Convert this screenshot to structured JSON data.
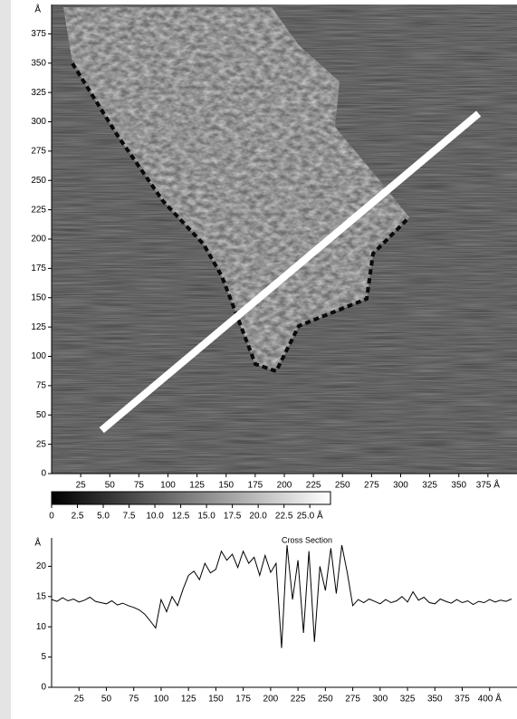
{
  "chart_data": [
    {
      "type": "image",
      "xlim": [
        0,
        400
      ],
      "ylim": [
        0,
        400
      ],
      "xticks": [
        25,
        50,
        75,
        100,
        125,
        150,
        175,
        200,
        225,
        250,
        275,
        300,
        325,
        350,
        {
          "value": 375,
          "label": "375 Å"
        }
      ],
      "yticks": [
        0,
        25,
        50,
        75,
        100,
        125,
        150,
        175,
        200,
        225,
        250,
        275,
        300,
        325,
        350,
        375
      ],
      "y_label": "Å",
      "profile_line": {
        "x": [
          43,
          367
        ],
        "y": [
          37,
          307
        ],
        "color": "#ffffff"
      }
    },
    {
      "type": "colorbar",
      "xlim": [
        0,
        27
      ],
      "xticks": [
        0,
        2.5,
        {
          "value": 5,
          "label": "5.0"
        },
        7.5,
        {
          "value": 10,
          "label": "10.0"
        },
        12.5,
        {
          "value": 15,
          "label": "15.0"
        },
        17.5,
        {
          "value": 20,
          "label": "20.0"
        },
        22.5,
        {
          "value": 25,
          "label": "25.0 Å"
        }
      ]
    },
    {
      "type": "line",
      "title": "Cross Section",
      "xlim": [
        0,
        425
      ],
      "ylim": [
        0,
        24.7
      ],
      "xticks": [
        25,
        50,
        75,
        100,
        125,
        150,
        175,
        200,
        225,
        250,
        275,
        300,
        325,
        350,
        375,
        {
          "value": 400,
          "label": "400 Å"
        }
      ],
      "yticks": [
        0,
        5,
        10,
        15,
        20
      ],
      "y_label": "Å",
      "color": "#000000",
      "x": [
        0,
        5,
        10,
        15,
        20,
        25,
        30,
        35,
        40,
        45,
        50,
        55,
        60,
        65,
        70,
        75,
        80,
        85,
        90,
        95,
        100,
        105,
        110,
        115,
        120,
        125,
        130,
        135,
        140,
        145,
        150,
        155,
        160,
        165,
        170,
        175,
        180,
        185,
        190,
        195,
        200,
        205,
        210,
        215,
        220,
        225,
        230,
        235,
        240,
        245,
        250,
        255,
        260,
        265,
        270,
        275,
        280,
        285,
        290,
        295,
        300,
        305,
        310,
        315,
        320,
        325,
        330,
        335,
        340,
        345,
        350,
        355,
        360,
        365,
        370,
        375,
        380,
        385,
        390,
        395,
        400,
        405,
        410,
        415,
        420
      ],
      "values": [
        14.5,
        14.2,
        14.8,
        14.3,
        14.6,
        14.1,
        14.4,
        14.9,
        14.2,
        14.0,
        13.8,
        14.3,
        13.6,
        13.9,
        13.5,
        13.2,
        12.8,
        12.1,
        11.0,
        9.8,
        14.5,
        12.5,
        15.0,
        13.5,
        16.2,
        18.5,
        19.2,
        17.8,
        20.5,
        18.9,
        19.5,
        22.5,
        21.0,
        22.0,
        19.8,
        22.5,
        20.5,
        21.5,
        18.5,
        21.8,
        19.0,
        20.5,
        6.5,
        23.5,
        14.5,
        21.0,
        9.0,
        22.5,
        7.5,
        20.0,
        16.0,
        23.0,
        15.5,
        23.5,
        19.0,
        13.5,
        14.5,
        14.0,
        14.6,
        14.2,
        13.8,
        14.5,
        14.0,
        14.3,
        15.0,
        14.1,
        15.8,
        14.4,
        14.9,
        14.0,
        13.8,
        14.6,
        14.2,
        13.9,
        14.5,
        14.0,
        14.3,
        13.7,
        14.2,
        14.0,
        14.5,
        14.1,
        14.4,
        14.2,
        14.6
      ]
    }
  ]
}
